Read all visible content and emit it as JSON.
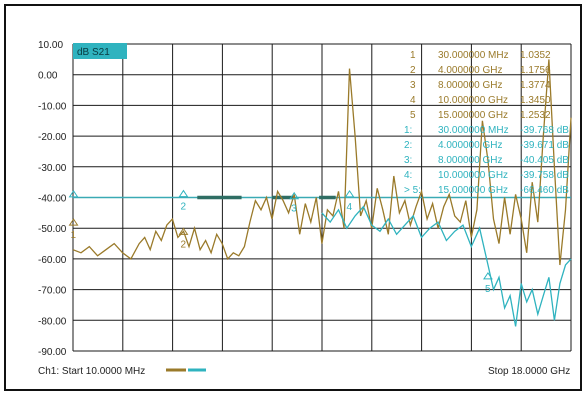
{
  "chart_data": {
    "type": "line",
    "trace_label": "dB S21",
    "channel_start": "Ch1: Start 10.0000 MHz",
    "channel_stop": "Stop 18.0000 GHz",
    "y_tick_labels": [
      "10.00",
      "0.00",
      "-10.00",
      "-20.00",
      "-30.00",
      "-40.00",
      "-50.00",
      "-60.00",
      "-70.00",
      "-80.00",
      "-90.00"
    ],
    "ylim": [
      -90,
      10
    ],
    "xlim": [
      0.01,
      18
    ],
    "grid": true,
    "colors": {
      "trace1": "#9a7a2a",
      "trace2": "#2fb3bf",
      "limit": "#3aaab4",
      "limit_dark": "#2f6e64"
    },
    "limit_line_y": -40,
    "series": [
      {
        "x": [
          0.01,
          0.3,
          0.6,
          0.9,
          1.2,
          1.5,
          1.8,
          2.1,
          2.4,
          2.6,
          2.8,
          3.0,
          3.2,
          3.4,
          3.6,
          3.8,
          4.0,
          4.2,
          4.4,
          4.6,
          4.8,
          5.0,
          5.2,
          5.4,
          5.6,
          5.8,
          6.0,
          6.2,
          6.4,
          6.6,
          6.8,
          7.0,
          7.2,
          7.4,
          7.6,
          7.8,
          8.0,
          8.2,
          8.4,
          8.6,
          8.8,
          9.0,
          9.2,
          9.4,
          9.6,
          9.8,
          10.0,
          10.2,
          10.4,
          10.6,
          10.8,
          11.0,
          11.2,
          11.4,
          11.6,
          11.8,
          12.0,
          12.2,
          12.4,
          12.6,
          12.8,
          13.0,
          13.2,
          13.4,
          13.6,
          13.8,
          14.0,
          14.2,
          14.4,
          14.6,
          14.8,
          15.0,
          15.2,
          15.4,
          15.6,
          15.8,
          16.0,
          16.2,
          16.4,
          16.6,
          16.8,
          17.0,
          17.2,
          17.4,
          17.6,
          17.8,
          18.0
        ],
        "values": [
          -57,
          -58,
          -56,
          -59,
          -57,
          -55,
          -58,
          -60,
          -55,
          -53,
          -57,
          -51,
          -54,
          -49,
          -47,
          -53,
          -51,
          -56,
          -50,
          -57,
          -54,
          -58,
          -52,
          -55,
          -60,
          -58,
          -59,
          -56,
          -48,
          -41,
          -44,
          -40,
          -47,
          -38,
          -41,
          -45,
          -39,
          -52,
          -42,
          -48,
          -40,
          -55,
          -44,
          -46,
          -38,
          -50,
          2,
          -20,
          -46,
          -41,
          -50,
          -37,
          -44,
          -52,
          -33,
          -45,
          -41,
          -49,
          -43,
          -38,
          -47,
          -42,
          -50,
          -43,
          -39,
          -46,
          -48,
          -41,
          -53,
          -44,
          -15,
          -28,
          -47,
          -55,
          -40,
          -52,
          -39,
          -47,
          -58,
          -35,
          -48,
          -20,
          5,
          -30,
          -62,
          -44,
          -14
        ]
      },
      {
        "x": [
          9.0,
          9.3,
          9.6,
          9.9,
          10.2,
          10.5,
          10.8,
          11.1,
          11.4,
          11.7,
          12.0,
          12.3,
          12.6,
          12.9,
          13.2,
          13.5,
          13.8,
          14.1,
          14.4,
          14.7,
          15.0,
          15.2,
          15.4,
          15.6,
          15.8,
          16.0,
          16.2,
          16.4,
          16.6,
          16.8,
          17.0,
          17.2,
          17.4,
          17.6,
          17.8,
          18.0
        ],
        "values": [
          -45,
          -48,
          -44,
          -50,
          -46,
          -43,
          -49,
          -51,
          -47,
          -52,
          -49,
          -46,
          -53,
          -50,
          -48,
          -54,
          -51,
          -49,
          -56,
          -50,
          -62,
          -70,
          -66,
          -76,
          -72,
          -82,
          -68,
          -74,
          -70,
          -78,
          -72,
          -66,
          -80,
          -68,
          -62,
          -60
        ]
      }
    ],
    "marker_numbers_left": [
      "1",
      "2",
      "3",
      "4",
      "5",
      "1:",
      "2:",
      "3:",
      "4:",
      "> 5:"
    ],
    "marker_readouts": [
      {
        "num": "1:",
        "freq": "30.000000 MHz",
        "value": "1.0352"
      },
      {
        "num": "2:",
        "freq": "4.000000 GHz",
        "value": "1.1756"
      },
      {
        "num": "3:",
        "freq": "8.000000 GHz",
        "value": "1.3774"
      },
      {
        "num": "4:",
        "freq": "10.000000 GHz",
        "value": "1.3450"
      },
      {
        "num": "5:",
        "freq": "15.000000 GHz",
        "value": "1.2532"
      },
      {
        "num": "1:",
        "freq": "30.000000 MHz",
        "value": "-39.768 dB"
      },
      {
        "num": "2:",
        "freq": "4.000000 GHz",
        "value": "-39.671 dB"
      },
      {
        "num": "3:",
        "freq": "8.000000 GHz",
        "value": "-40.405 dB"
      },
      {
        "num": "4:",
        "freq": "10.000000 GHz",
        "value": "-39.758 dB"
      },
      {
        "num": "> 5:",
        "freq": "15.000000 GHz",
        "value": "-66.460 dB"
      }
    ]
  }
}
